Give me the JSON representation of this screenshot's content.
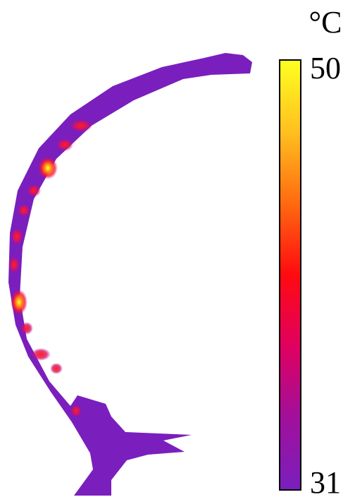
{
  "chart_data": {
    "type": "heatmap",
    "colorbar": {
      "label": "°C",
      "lim": [
        31,
        50
      ],
      "ticks": [
        31,
        50
      ],
      "colors": [
        "#7a1fbd",
        "#a0109c",
        "#e00060",
        "#ff0a10",
        "#ff6a10",
        "#ffc020",
        "#ffff20"
      ]
    }
  }
}
